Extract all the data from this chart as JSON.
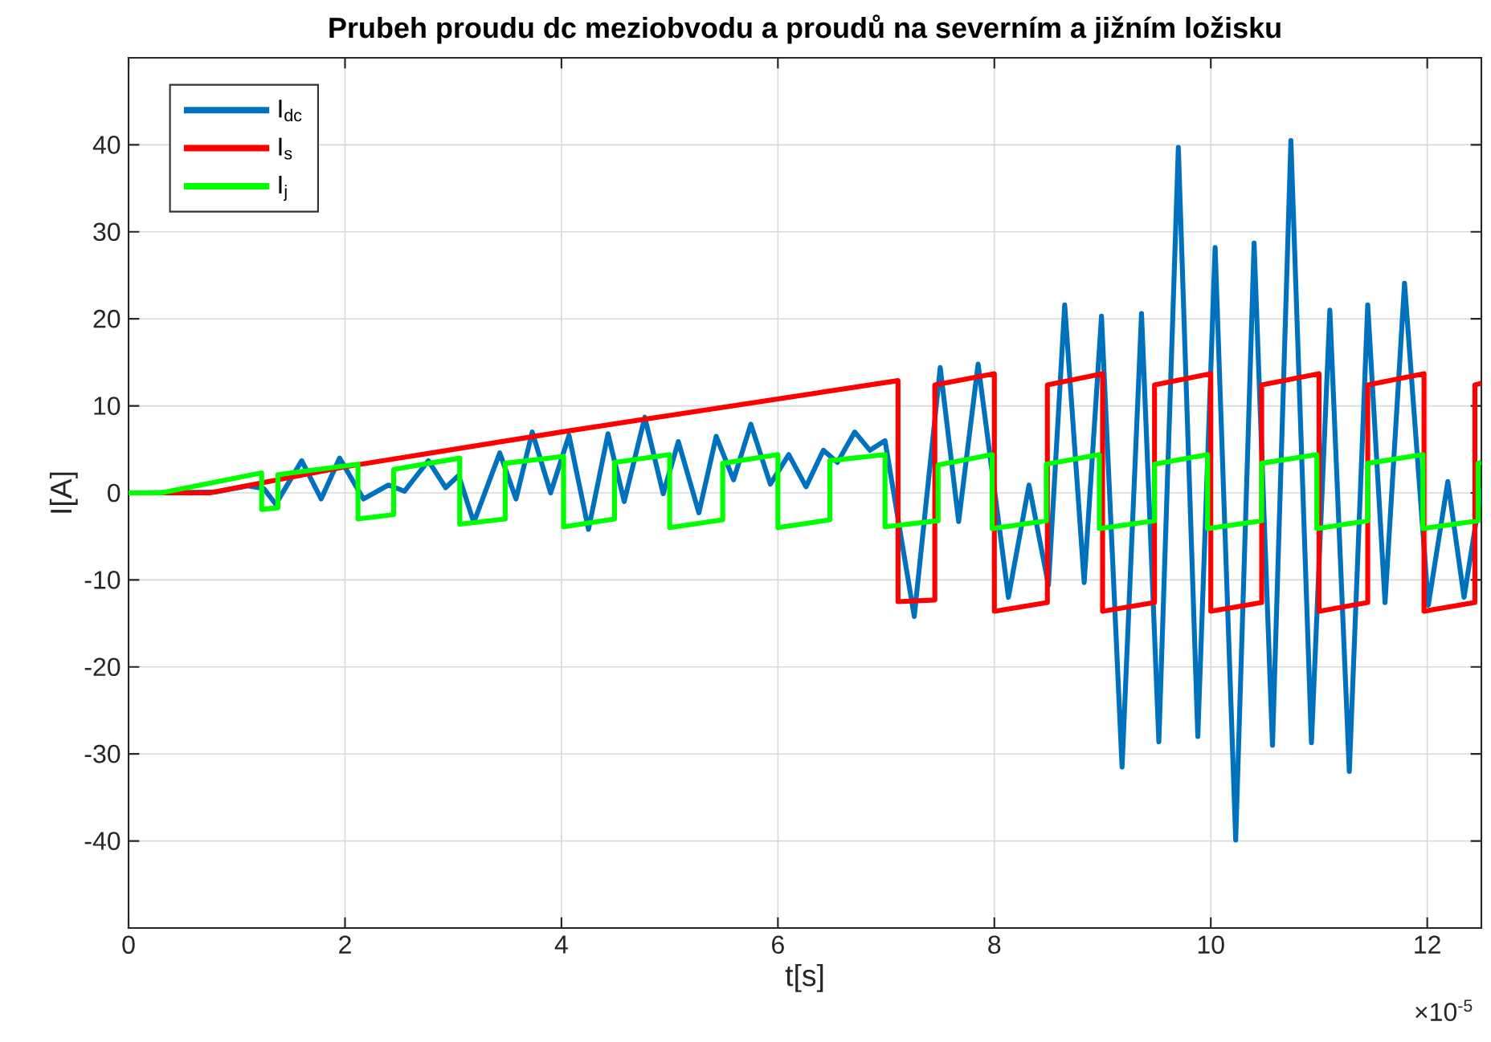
{
  "chart_data": {
    "type": "line",
    "title": "Prubeh proudu dc meziobvodu a proudů na severním a jižním ložisku",
    "xlabel": "t[s]",
    "ylabel": "I[A]",
    "xlim": [
      0,
      12.5
    ],
    "ylim": [
      -50,
      50
    ],
    "xticks": [
      0,
      2,
      4,
      6,
      8,
      10,
      12
    ],
    "yticks": [
      -40,
      -30,
      -20,
      -10,
      0,
      10,
      20,
      30,
      40
    ],
    "grid": true,
    "legend": "top left",
    "annotations": [
      "×10$^{-5}$"
    ],
    "series": [
      {
        "name": "I$_{dc}$",
        "color": "#0072bd",
        "x": [
          0,
          0.8,
          1.1,
          1.25,
          1.36,
          1.6,
          1.78,
          1.95,
          2.17,
          2.4,
          2.55,
          2.77,
          2.93,
          3.05,
          3.19,
          3.43,
          3.58,
          3.73,
          3.9,
          4.07,
          4.25,
          4.43,
          4.58,
          4.77,
          4.94,
          5.08,
          5.27,
          5.43,
          5.59,
          5.75,
          5.93,
          6.1,
          6.26,
          6.42,
          6.55,
          6.71,
          6.85,
          6.99,
          7.26,
          7.5,
          7.67,
          7.85,
          8.13,
          8.32,
          8.5,
          8.65,
          8.83,
          8.99,
          9.18,
          9.36,
          9.52,
          9.7,
          9.88,
          10.04,
          10.23,
          10.4,
          10.57,
          10.74,
          10.93,
          11.1,
          11.28,
          11.45,
          11.61,
          11.79,
          12.01,
          12.19,
          12.34,
          12.5
        ],
        "values": [
          0,
          0.1,
          0.8,
          0.5,
          -1.3,
          3.7,
          -0.7,
          4.0,
          -0.7,
          0.9,
          0.2,
          3.7,
          0.6,
          2.0,
          -3.4,
          4.6,
          -0.7,
          7.0,
          0,
          6.6,
          -4.2,
          6.8,
          -1.0,
          8.7,
          -0.1,
          5.9,
          -2.3,
          6.5,
          1.5,
          7.9,
          1.0,
          4.4,
          0.7,
          4.9,
          3.5,
          7.0,
          4.9,
          6.0,
          -14.2,
          14.4,
          -3.3,
          14.8,
          -12.0,
          0.9,
          -10.6,
          21.6,
          -10.3,
          20.3,
          -31.5,
          20.6,
          -28.6,
          39.7,
          -28,
          28.2,
          -39.9,
          28.7,
          -29.0,
          40.5,
          -28.7,
          21,
          -32.0,
          21.6,
          -12.6,
          24.1,
          -12.9,
          1.3,
          -12.0,
          0.5
        ]
      },
      {
        "name": "I$_{s}$",
        "color": "#ff0000",
        "x": [
          0,
          0.75,
          2,
          4,
          7.11,
          7.11,
          7.45,
          7.45,
          8.0,
          8.0,
          8.49,
          8.49,
          9.0,
          9.0,
          9.48,
          9.48,
          10.0,
          10.0,
          10.47,
          10.47,
          11.0,
          11.0,
          11.45,
          11.45,
          11.97,
          11.97,
          12.44,
          12.44,
          12.5
        ],
        "values": [
          0,
          0,
          3,
          7,
          12.9,
          -12.5,
          -12.3,
          12.4,
          13.7,
          -13.6,
          -12.6,
          12.4,
          13.7,
          -13.6,
          -12.6,
          12.4,
          13.7,
          -13.6,
          -12.6,
          12.4,
          13.7,
          -13.6,
          -12.6,
          12.4,
          13.7,
          -13.6,
          -12.6,
          12.4,
          12.6
        ]
      },
      {
        "name": "I$_{j}$",
        "color": "#00ff00",
        "x": [
          0,
          0.3,
          1.23,
          1.23,
          1.38,
          1.38,
          2.12,
          2.12,
          2.45,
          2.45,
          3.06,
          3.06,
          3.48,
          3.48,
          4.02,
          4.02,
          4.49,
          4.49,
          5.0,
          5.0,
          5.49,
          5.49,
          6.0,
          6.0,
          6.48,
          6.48,
          6.99,
          6.99,
          7.48,
          7.48,
          7.98,
          7.98,
          8.48,
          8.48,
          8.97,
          8.97,
          9.48,
          9.48,
          9.97,
          9.97,
          10.47,
          10.47,
          10.98,
          10.98,
          11.45,
          11.45,
          11.96,
          11.96,
          12.47,
          12.47,
          12.5
        ],
        "values": [
          0,
          0,
          2.3,
          -1.9,
          -1.7,
          2.1,
          3.3,
          -3.0,
          -2.5,
          2.7,
          4.0,
          -3.6,
          -3.0,
          3.4,
          4.2,
          -3.9,
          -3.0,
          3.5,
          4.4,
          -4.0,
          -3.1,
          3.4,
          4.4,
          -4.0,
          -3.1,
          3.7,
          4.4,
          -3.9,
          -3.2,
          3.2,
          4.4,
          -4.1,
          -3.2,
          3.3,
          4.4,
          -4.1,
          -3.2,
          3.3,
          4.4,
          -4.1,
          -3.2,
          3.4,
          4.4,
          -4.1,
          -3.2,
          3.4,
          4.4,
          -4.1,
          -3.2,
          3.4,
          3.5
        ]
      }
    ]
  }
}
